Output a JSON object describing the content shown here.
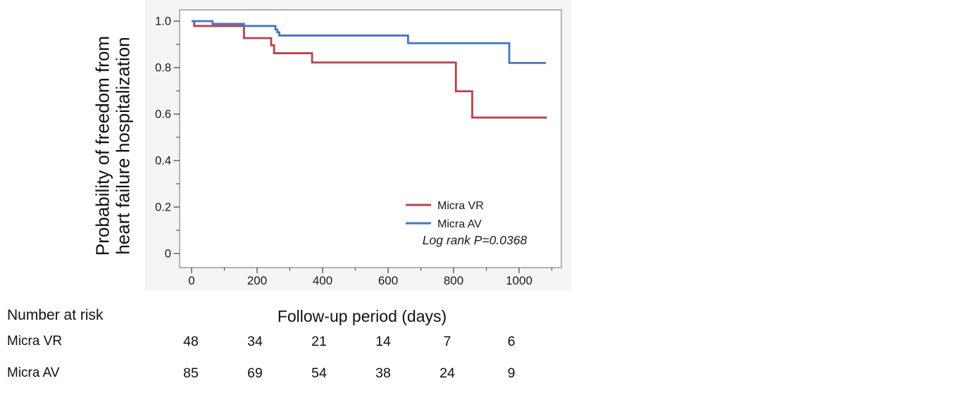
{
  "chart": {
    "panel_bg": "#f4f5f6",
    "frame_color": "#8c8c8c",
    "tick_color": "#4a4a4a",
    "ylabel_line1": "Probability of freedom from",
    "ylabel_line2": "heart failure hospitalization",
    "x_major_ticks": [
      0,
      200,
      400,
      600,
      800,
      1000
    ],
    "x_minor_ticks": [
      100,
      300,
      500,
      700,
      900,
      1100
    ],
    "y_major_ticks": [
      [
        "1.0",
        1.0
      ],
      [
        "0.8",
        0.8
      ],
      [
        "0.6",
        0.6
      ],
      [
        "0.4",
        0.4
      ],
      [
        "0.2",
        0.2
      ],
      [
        "0",
        0.0
      ]
    ],
    "y_minor_ticks": [
      0.9,
      0.7,
      0.5,
      0.3,
      0.1
    ],
    "legend": [
      {
        "name": "Micra VR",
        "color": "#bc4049"
      },
      {
        "name": "Micra AV",
        "color": "#4277c3"
      }
    ],
    "annotation": "Log rank P=0.0368"
  },
  "chart_data": {
    "type": "line",
    "variant": "kaplan_meier_step",
    "title": "",
    "xlabel": "Follow-up period (days)",
    "ylabel": "Probability of freedom from heart failure hospitalization",
    "xlim": [
      -40,
      1130
    ],
    "ylim": [
      -0.06,
      1.05
    ],
    "grid": false,
    "legend_position": "lower right inside plot",
    "annotation": "Log rank P=0.0368",
    "series": [
      {
        "name": "Micra VR",
        "color": "#bc4049",
        "end_day": 1085,
        "steps": [
          [
            0,
            1.0
          ],
          [
            8,
            0.979
          ],
          [
            160,
            0.927
          ],
          [
            243,
            0.896
          ],
          [
            252,
            0.862
          ],
          [
            368,
            0.822
          ],
          [
            807,
            0.698
          ],
          [
            857,
            0.585
          ]
        ]
      },
      {
        "name": "Micra AV",
        "color": "#4277c3",
        "end_day": 1082,
        "steps": [
          [
            0,
            1.0
          ],
          [
            64,
            0.988
          ],
          [
            160,
            0.979
          ],
          [
            256,
            0.964
          ],
          [
            262,
            0.952
          ],
          [
            268,
            0.938
          ],
          [
            661,
            0.905
          ],
          [
            970,
            0.82
          ]
        ]
      }
    ]
  },
  "risk_table": {
    "title": "Number at risk",
    "axis_title": "Follow-up period (days)",
    "timepoints": [
      0,
      200,
      400,
      600,
      800,
      1000
    ],
    "rows": [
      {
        "label": "Micra VR",
        "values": [
          "48",
          "34",
          "21",
          "14",
          "7",
          "6"
        ]
      },
      {
        "label": "Micra AV",
        "values": [
          "85",
          "69",
          "54",
          "38",
          "24",
          "9"
        ]
      }
    ]
  }
}
